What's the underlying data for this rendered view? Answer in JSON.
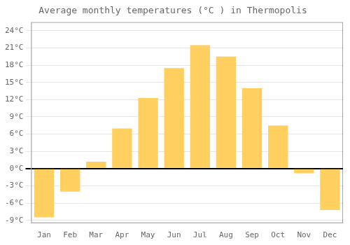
{
  "chart_data": {
    "type": "bar",
    "title": "Average monthly temperatures (°C ) in Thermopolis",
    "categories": [
      "Jan",
      "Feb",
      "Mar",
      "Apr",
      "May",
      "Jun",
      "Jul",
      "Aug",
      "Sep",
      "Oct",
      "Nov",
      "Dec"
    ],
    "values": [
      -8.5,
      -4.0,
      1.2,
      7.0,
      12.3,
      17.5,
      21.5,
      19.5,
      14.0,
      7.5,
      -0.8,
      -7.2
    ],
    "color": "#FFD060",
    "ylim": [
      -9.5,
      25.5
    ],
    "yticks": [
      {
        "value": -9,
        "label": "-9°C"
      },
      {
        "value": -6,
        "label": "-6°C"
      },
      {
        "value": -3,
        "label": "-3°C"
      },
      {
        "value": 0,
        "label": "0°C"
      },
      {
        "value": 3,
        "label": "3°C"
      },
      {
        "value": 6,
        "label": "6°C"
      },
      {
        "value": 9,
        "label": "9°C"
      },
      {
        "value": 12,
        "label": "12°C"
      },
      {
        "value": 15,
        "label": "15°C"
      },
      {
        "value": 18,
        "label": "18°C"
      },
      {
        "value": 21,
        "label": "21°C"
      },
      {
        "value": 24,
        "label": "24°C"
      }
    ],
    "grid": true
  }
}
